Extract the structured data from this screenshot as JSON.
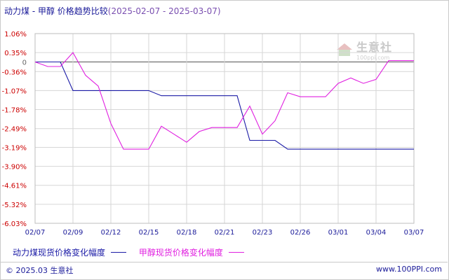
{
  "header": {
    "title_main": "动力煤 - 甲醇 价格趋势比较",
    "title_range": "(2025-02-07 - 2025-03-07)"
  },
  "watermark": {
    "text": "生意社",
    "sub": "100ppi.com"
  },
  "footer": {
    "left": "© 2025.03 生意社",
    "right": "www.100PPI.com"
  },
  "colors": {
    "series1": "#1a1aa6",
    "series2": "#e020e0",
    "axis_text": "#1a1a99",
    "neg_tick": "#cc0000",
    "grid": "#d6d6d6",
    "zero_line": "#555555"
  },
  "chart_data": {
    "type": "line",
    "title": "动力煤 - 甲醇 价格趋势比较",
    "y_ticks": [
      "1.06%",
      "0.35%",
      "0",
      "-0.36%",
      "-1.07%",
      "-1.78%",
      "-2.49%",
      "-3.19%",
      "-3.90%",
      "-4.61%",
      "-5.32%",
      "-6.03%"
    ],
    "y_tick_values": [
      1.06,
      0.35,
      0,
      -0.36,
      -1.07,
      -1.78,
      -2.49,
      -3.19,
      -3.9,
      -4.61,
      -5.32,
      -6.03
    ],
    "ylim": [
      -6.03,
      1.06
    ],
    "x_tick_labels": [
      "02/07",
      "02/09",
      "02/12",
      "02/15",
      "02/18",
      "02/21",
      "02/23",
      "02/26",
      "03/01",
      "03/04",
      "03/07"
    ],
    "x_tick_index": [
      0,
      3,
      6,
      9,
      12,
      15,
      18,
      21,
      24,
      27,
      30
    ],
    "x_count": 31,
    "grid": true,
    "legend_position": "bottom-left",
    "series": [
      {
        "name": "动力煤现货价格变化幅度",
        "color": "#1a1aa6",
        "values": [
          0,
          0,
          0,
          -1.07,
          -1.07,
          -1.07,
          -1.07,
          -1.07,
          -1.07,
          -1.07,
          -1.26,
          -1.26,
          -1.26,
          -1.26,
          -1.26,
          -1.26,
          -1.26,
          -2.93,
          -2.93,
          -2.93,
          -3.26,
          -3.26,
          -3.26,
          -3.26,
          -3.26,
          -3.26,
          -3.26,
          -3.26,
          -3.26,
          -3.26,
          -3.26
        ]
      },
      {
        "name": "甲醇现货价格变化幅度",
        "color": "#e020e0",
        "values": [
          0,
          -0.17,
          -0.17,
          0.35,
          -0.5,
          -0.9,
          -2.3,
          -3.26,
          -3.26,
          -3.26,
          -2.4,
          -2.7,
          -3.0,
          -2.6,
          -2.45,
          -2.45,
          -2.45,
          -1.65,
          -2.7,
          -2.2,
          -1.15,
          -1.3,
          -1.3,
          -1.3,
          -0.8,
          -0.6,
          -0.8,
          -0.65,
          0.05,
          0.05,
          0.05
        ]
      }
    ]
  },
  "legend": {
    "items": [
      {
        "label": "动力煤现货价格变化幅度",
        "color": "#1a1aa6"
      },
      {
        "label": "甲醇现货价格变化幅度",
        "color": "#e020e0"
      }
    ]
  }
}
